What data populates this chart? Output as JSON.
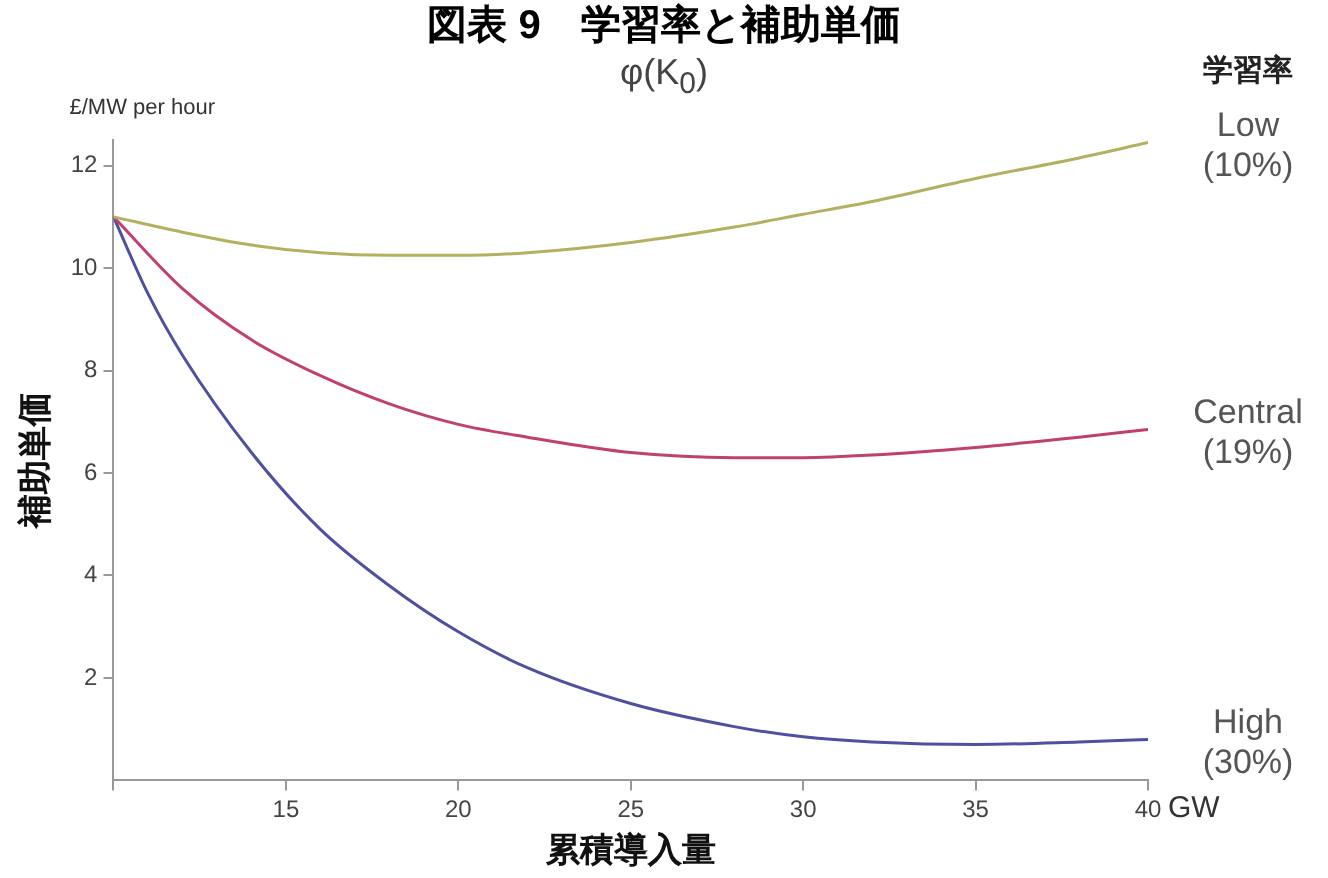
{
  "chart_data": {
    "type": "line",
    "title": "図表 9　学習率と補助単価",
    "subtitle": "φ(K$_{0}$)",
    "xlabel": "累積導入量",
    "ylabel": "補助単価",
    "legend_title": "学習率",
    "annotations": [
      "£/MW per hour",
      "GW"
    ],
    "xlim": [
      10,
      40
    ],
    "xticks": [
      {
        "value": 10,
        "label": null
      },
      15,
      20,
      25,
      30,
      35,
      40
    ],
    "ylim": [
      0,
      12.5
    ],
    "yticks": [
      2,
      4,
      6,
      8,
      10,
      12
    ],
    "grid": false,
    "legend": false,
    "marker": "none",
    "line_style": "solid",
    "series": [
      {
        "name": "Low (10%)",
        "color": "#b5b060",
        "x": [
          10,
          12,
          14,
          16,
          18,
          20,
          22,
          25,
          28,
          30,
          32,
          35,
          38,
          40
        ],
        "values": [
          11,
          10.7,
          10.45,
          10.3,
          10.25,
          10.25,
          10.3,
          10.5,
          10.8,
          11.05,
          11.3,
          11.75,
          12.15,
          12.45
        ]
      },
      {
        "name": "Central (19%)",
        "color": "#c04070",
        "x": [
          10,
          12,
          14,
          16,
          18,
          20,
          22,
          25,
          28,
          30,
          32,
          35,
          38,
          40
        ],
        "values": [
          11,
          9.6,
          8.6,
          7.9,
          7.35,
          6.95,
          6.7,
          6.4,
          6.3,
          6.3,
          6.35,
          6.5,
          6.7,
          6.85
        ]
      },
      {
        "name": "High (30%)",
        "color": "#5050a0",
        "x": [
          10,
          11,
          12,
          14,
          16,
          18,
          20,
          22,
          25,
          28,
          30,
          32,
          35,
          38,
          40
        ],
        "values": [
          11,
          9.5,
          8.3,
          6.4,
          4.9,
          3.8,
          2.9,
          2.2,
          1.5,
          1.05,
          0.85,
          0.75,
          0.7,
          0.75,
          0.8
        ]
      }
    ]
  }
}
